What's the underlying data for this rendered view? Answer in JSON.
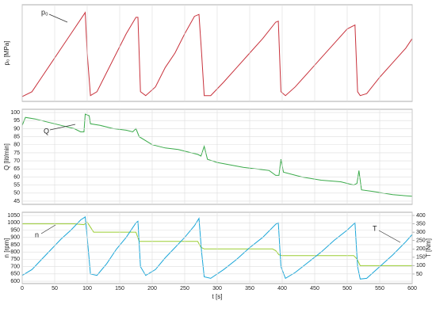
{
  "chart_data": [
    {
      "type": "line",
      "ylabel": "p₀ [MPa]",
      "xlim": [
        0,
        600
      ],
      "ylim": [
        0,
        10
      ],
      "x": [
        0,
        15,
        30,
        45,
        60,
        75,
        90,
        97,
        100,
        105,
        115,
        130,
        145,
        160,
        175,
        178,
        182,
        190,
        205,
        220,
        235,
        250,
        265,
        272,
        276,
        280,
        290,
        310,
        330,
        350,
        370,
        390,
        394,
        398,
        405,
        420,
        440,
        460,
        480,
        500,
        512,
        516,
        520,
        530,
        550,
        570,
        590,
        600
      ],
      "series": [
        {
          "name": "p₀",
          "color": "#c8323c",
          "values": [
            0.5,
            1,
            2.5,
            4,
            5.5,
            7,
            8.5,
            9.2,
            5,
            0.6,
            1,
            3,
            5,
            7,
            8.7,
            8.7,
            1,
            0.6,
            1.5,
            3.5,
            5,
            7,
            8.8,
            9,
            5,
            0.6,
            0.6,
            2,
            3.5,
            5,
            6.5,
            8.2,
            8.3,
            1,
            0.6,
            1.5,
            3,
            4.5,
            6,
            7.5,
            7.9,
            1,
            0.6,
            0.8,
            2.5,
            4,
            5.5,
            6.5
          ]
        }
      ]
    },
    {
      "type": "line",
      "ylabel": "Q [lit/min]",
      "xlim": [
        0,
        600
      ],
      "ylim": [
        43,
        102
      ],
      "yticks": [
        45,
        50,
        55,
        60,
        65,
        70,
        75,
        80,
        85,
        90,
        95,
        100
      ],
      "grid": true,
      "x": [
        0,
        5,
        20,
        40,
        60,
        80,
        90,
        95,
        97,
        103,
        105,
        120,
        140,
        160,
        170,
        175,
        180,
        200,
        220,
        240,
        260,
        270,
        275,
        280,
        285,
        300,
        340,
        360,
        380,
        390,
        395,
        398,
        402,
        430,
        460,
        490,
        510,
        515,
        518,
        522,
        540,
        570,
        600
      ],
      "series": [
        {
          "name": "Q",
          "color": "#3aaa4a",
          "values": [
            92,
            97,
            96,
            94,
            92,
            90,
            88,
            88,
            99,
            98,
            93,
            92,
            90,
            89,
            88,
            90,
            85,
            80,
            78,
            77,
            75,
            74,
            73,
            79,
            71,
            69,
            66,
            65,
            64,
            61,
            61,
            71,
            63,
            60,
            58,
            57,
            55,
            56,
            64,
            52,
            51,
            49,
            48
          ]
        }
      ]
    },
    {
      "type": "line",
      "ylabel": "n [rpm]",
      "y2label": "T [Nm]",
      "xlabel": "t [s]",
      "xlim": [
        0,
        600
      ],
      "xticks": [
        0,
        50,
        100,
        150,
        200,
        250,
        300,
        350,
        400,
        450,
        500,
        550,
        600
      ],
      "ylim": [
        584,
        1072
      ],
      "yticks": [
        600,
        650,
        700,
        750,
        800,
        850,
        900,
        950,
        1000,
        1050
      ],
      "y2lim": [
        -7,
        419
      ],
      "y2ticks": [
        50,
        100,
        150,
        200,
        250,
        300,
        350,
        400
      ],
      "grid": true,
      "x": [
        0,
        15,
        30,
        45,
        60,
        75,
        90,
        97,
        100,
        105,
        115,
        130,
        145,
        160,
        175,
        178,
        182,
        190,
        205,
        220,
        235,
        250,
        265,
        272,
        276,
        280,
        290,
        310,
        330,
        350,
        370,
        390,
        394,
        398,
        405,
        420,
        440,
        460,
        480,
        500,
        512,
        516,
        520,
        530,
        550,
        570,
        590,
        600
      ],
      "series": [
        {
          "name": "n",
          "color": "#1aa6d8",
          "values": [
            640,
            680,
            750,
            820,
            890,
            950,
            1020,
            1040,
            900,
            650,
            640,
            720,
            820,
            900,
            1000,
            1010,
            700,
            640,
            680,
            760,
            830,
            900,
            980,
            1030,
            800,
            630,
            620,
            680,
            750,
            830,
            900,
            990,
            1000,
            700,
            620,
            660,
            730,
            800,
            880,
            950,
            1000,
            700,
            615,
            620,
            700,
            780,
            870,
            920
          ]
        },
        {
          "name": "T",
          "color": "#9acd32",
          "axis": "y2",
          "x": [
            0,
            80,
            95,
            100,
            105,
            110,
            170,
            175,
            180,
            270,
            275,
            280,
            385,
            390,
            395,
            400,
            510,
            515,
            520,
            525,
            600
          ],
          "values": [
            350,
            350,
            345,
            360,
            330,
            300,
            300,
            300,
            245,
            245,
            210,
            200,
            200,
            190,
            165,
            160,
            160,
            140,
            100,
            100,
            100
          ]
        }
      ]
    }
  ]
}
